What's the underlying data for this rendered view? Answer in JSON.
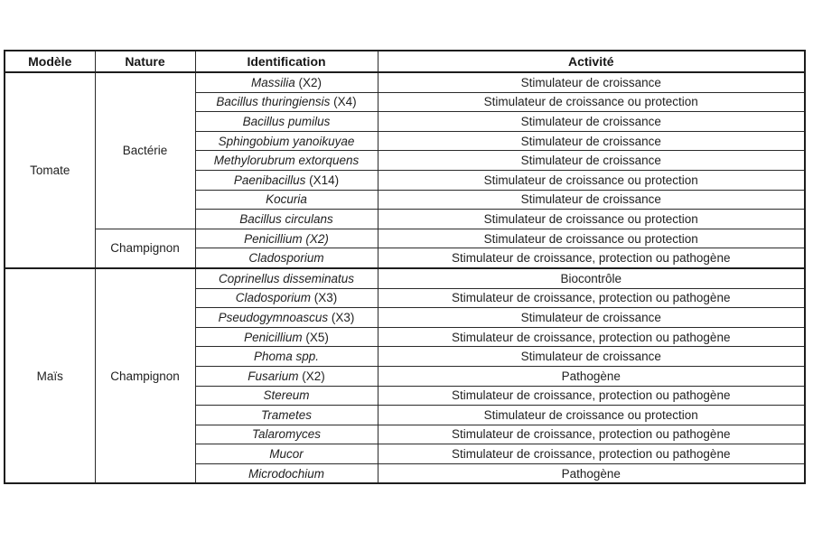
{
  "colors": {
    "background": "#ffffff",
    "border": "#1d1d1d",
    "text": "#1f1f1f"
  },
  "table": {
    "headers": [
      "Modèle",
      "Nature",
      "Identification",
      "Activité"
    ],
    "rows": [
      {
        "modele": "Tomate",
        "modele_span": 10,
        "nature": "Bactérie",
        "nature_span": 8,
        "identification": "Massilia",
        "count": "(X2)",
        "activite": "Stimulateur de croissance"
      },
      {
        "identification": "Bacillus thuringiensis",
        "count": "(X4)",
        "activite": "Stimulateur de croissance ou protection"
      },
      {
        "identification": "Bacillus pumilus",
        "count": "",
        "activite": "Stimulateur de croissance"
      },
      {
        "identification": "Sphingobium yanoikuyae",
        "count": "",
        "activite": "Stimulateur de croissance"
      },
      {
        "identification": "Methylorubrum extorquens",
        "count": "",
        "activite": "Stimulateur de croissance"
      },
      {
        "identification": "Paenibacillus",
        "count": "(X14)",
        "activite": "Stimulateur de croissance ou protection"
      },
      {
        "identification": "Kocuria",
        "count": "",
        "activite": "Stimulateur de croissance"
      },
      {
        "identification": "Bacillus circulans",
        "count": "",
        "activite": "Stimulateur de croissance ou protection"
      },
      {
        "nature": "Champignon",
        "nature_span": 2,
        "identification": "Penicillium (X2)",
        "count": "",
        "activite": "Stimulateur de croissance ou protection"
      },
      {
        "identification": "Cladosporium",
        "count": "",
        "activite": "Stimulateur de croissance, protection ou pathogène"
      },
      {
        "modele": "Maïs",
        "modele_span": 11,
        "nature": "Champignon",
        "nature_span": 11,
        "section_start": true,
        "identification": "Coprinellus disseminatus",
        "count": "",
        "activite": "Biocontrôle"
      },
      {
        "identification": "Cladosporium",
        "count": "(X3)",
        "activite": "Stimulateur de croissance, protection ou pathogène"
      },
      {
        "identification": "Pseudogymnoascus",
        "count": "(X3)",
        "activite": "Stimulateur de croissance"
      },
      {
        "identification": "Penicillium",
        "count": "(X5)",
        "activite": "Stimulateur de croissance, protection ou pathogène"
      },
      {
        "identification": "Phoma spp.",
        "count": "",
        "activite": "Stimulateur de croissance"
      },
      {
        "identification": "Fusarium",
        "count": "(X2)",
        "activite": "Pathogène"
      },
      {
        "identification": "Stereum",
        "count": "",
        "activite": "Stimulateur de croissance, protection ou pathogène"
      },
      {
        "identification": "Trametes",
        "count": "",
        "activite": "Stimulateur de croissance ou protection"
      },
      {
        "identification": "Talaromyces",
        "count": "",
        "activite": "Stimulateur de croissance, protection ou pathogène"
      },
      {
        "identification": "Mucor",
        "count": "",
        "activite": "Stimulateur de croissance, protection ou pathogène"
      },
      {
        "identification": "Microdochium",
        "count": "",
        "activite": "Pathogène"
      }
    ]
  }
}
